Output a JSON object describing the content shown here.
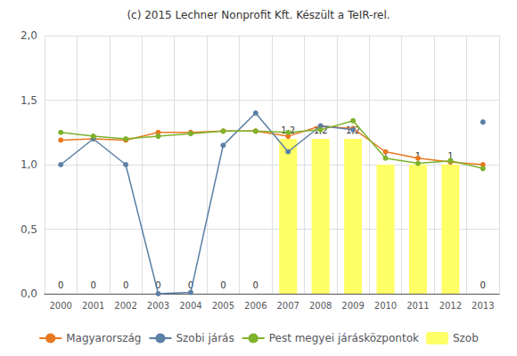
{
  "chart_data": {
    "type": "bar",
    "title": "(c) 2015 Lechner Nonprofit Kft. Készült a TeIR-rel.",
    "categories": [
      "2000",
      "2001",
      "2002",
      "2003",
      "2004",
      "2005",
      "2006",
      "2007",
      "2008",
      "2009",
      "2010",
      "2011",
      "2012",
      "2013"
    ],
    "series": [
      {
        "name": "Magyarország",
        "type": "line",
        "color": "#E87820",
        "marker": "circle",
        "values": [
          1.19,
          1.2,
          1.19,
          1.25,
          1.25,
          1.26,
          1.26,
          1.22,
          1.3,
          1.28,
          1.1,
          1.05,
          1.02,
          1.0
        ]
      },
      {
        "name": "Szobi járás",
        "type": "line",
        "color": "#5B7FA6",
        "marker": "circle",
        "values": [
          1.0,
          1.2,
          1.0,
          0.0,
          0.01,
          1.15,
          1.4,
          1.1,
          1.3,
          1.27,
          null,
          null,
          null,
          1.33
        ]
      },
      {
        "name": "Pest megyei járásközpontok",
        "type": "line",
        "color": "#7DB22A",
        "marker": "circle",
        "values": [
          1.25,
          1.22,
          1.2,
          1.22,
          1.24,
          1.26,
          1.26,
          1.25,
          1.27,
          1.34,
          1.05,
          1.01,
          1.03,
          0.97
        ]
      },
      {
        "name": "Szob",
        "type": "bar",
        "color": "#FFFF66",
        "data_labels": true,
        "values": [
          0,
          0,
          0,
          0,
          0,
          0,
          0,
          1.2,
          1.2,
          1.2,
          1.0,
          1.0,
          1.0,
          0
        ],
        "value_labels": [
          "0",
          "0",
          "0",
          "0",
          "0",
          "0",
          "0",
          "1,2",
          "1,2",
          "1,2",
          "1",
          "1",
          "1",
          "0"
        ]
      }
    ],
    "ylim": [
      0.0,
      2.0
    ],
    "yticks": [
      {
        "value": 0.0,
        "label": "0,0"
      },
      {
        "value": 0.5,
        "label": "0,5"
      },
      {
        "value": 1.0,
        "label": "1,0"
      },
      {
        "value": 1.5,
        "label": "1,5"
      },
      {
        "value": 2.0,
        "label": "2,0"
      }
    ],
    "grid": true,
    "legend": "bottom"
  }
}
